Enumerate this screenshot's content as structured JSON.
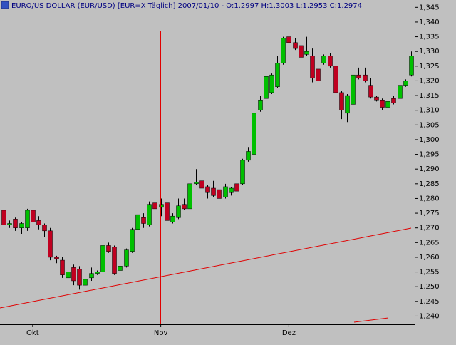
{
  "chart_data": {
    "type": "candlestick",
    "title": "EURO/US DOLLAR (EUR/USD) [EUR=X  Täglich] 2007/01/10 - O:1.2997 H:1.3003 L:1.2953 C:1.2974",
    "categories": [
      null,
      null,
      null,
      null,
      null,
      "Okt",
      null,
      null,
      null,
      null,
      null,
      null,
      null,
      null,
      null,
      null,
      null,
      null,
      null,
      null,
      null,
      null,
      null,
      null,
      null,
      null,
      null,
      "Nov",
      null,
      null,
      null,
      null,
      null,
      null,
      null,
      null,
      null,
      null,
      null,
      null,
      null,
      null,
      null,
      null,
      null,
      null,
      null,
      null,
      null,
      "Dez",
      null,
      null,
      null,
      null,
      null,
      null,
      null,
      null,
      null,
      null,
      null,
      null,
      null,
      null,
      null,
      null,
      null,
      null,
      null,
      null,
      null
    ],
    "open": [
      1.276,
      1.271,
      1.273,
      1.27,
      1.27,
      1.276,
      1.2725,
      1.271,
      1.269,
      1.26,
      1.259,
      1.253,
      1.2565,
      1.256,
      1.2505,
      1.253,
      1.2545,
      1.255,
      1.264,
      1.2635,
      1.2555,
      1.257,
      1.262,
      1.2695,
      1.2735,
      1.271,
      1.2785,
      1.277,
      1.2785,
      1.272,
      1.2735,
      1.278,
      1.2765,
      1.285,
      1.286,
      1.284,
      1.2835,
      1.283,
      1.2805,
      1.282,
      1.285,
      1.285,
      1.293,
      1.295,
      1.31,
      1.314,
      1.316,
      1.318,
      1.326,
      1.335,
      1.333,
      1.332,
      1.329,
      1.3285,
      1.324,
      1.326,
      1.3285,
      1.325,
      1.316,
      1.309,
      1.312,
      1.322,
      1.322,
      1.3185,
      1.3145,
      1.3135,
      1.311,
      1.314,
      1.314,
      1.3185,
      1.322
    ],
    "high": [
      1.2765,
      1.2725,
      1.2735,
      1.272,
      1.2765,
      1.2775,
      1.274,
      1.2715,
      1.27,
      1.2605,
      1.26,
      1.256,
      1.2575,
      1.257,
      1.2545,
      1.2565,
      1.2555,
      1.2645,
      1.265,
      1.264,
      1.2575,
      1.263,
      1.27,
      1.2755,
      1.275,
      1.279,
      1.28,
      1.28,
      1.2795,
      1.275,
      1.28,
      1.28,
      1.2855,
      1.29,
      1.287,
      1.2845,
      1.286,
      1.2835,
      1.285,
      1.284,
      1.286,
      1.2935,
      1.2975,
      1.31,
      1.315,
      1.322,
      1.3225,
      1.3285,
      1.335,
      1.3355,
      1.3345,
      1.3325,
      1.335,
      1.331,
      1.3245,
      1.329,
      1.3295,
      1.3255,
      1.3165,
      1.3155,
      1.3225,
      1.3245,
      1.3245,
      1.321,
      1.315,
      1.314,
      1.3135,
      1.315,
      1.3205,
      1.3205,
      1.33
    ],
    "low": [
      1.27,
      1.27,
      1.269,
      1.268,
      1.269,
      1.2705,
      1.2695,
      1.267,
      1.259,
      1.258,
      1.253,
      1.252,
      1.2505,
      1.249,
      1.2495,
      1.252,
      1.254,
      1.254,
      1.2615,
      1.254,
      1.255,
      1.2565,
      1.2615,
      1.269,
      1.27,
      1.2705,
      1.276,
      1.274,
      1.267,
      1.2715,
      1.273,
      1.276,
      1.276,
      1.2845,
      1.281,
      1.28,
      1.2805,
      1.279,
      1.28,
      1.281,
      1.282,
      1.2845,
      1.2925,
      1.2945,
      1.3095,
      1.3135,
      1.3155,
      1.3175,
      1.3255,
      1.3325,
      1.3305,
      1.326,
      1.3285,
      1.3195,
      1.318,
      1.3255,
      1.3245,
      1.3155,
      1.307,
      1.306,
      1.3115,
      1.3205,
      1.3195,
      1.314,
      1.313,
      1.31,
      1.3105,
      1.312,
      1.3135,
      1.318,
      1.3215
    ],
    "close": [
      1.271,
      1.2715,
      1.27,
      1.2715,
      1.276,
      1.272,
      1.271,
      1.269,
      1.26,
      1.2595,
      1.254,
      1.255,
      1.252,
      1.2505,
      1.2525,
      1.2545,
      1.255,
      1.264,
      1.262,
      1.2545,
      1.257,
      1.2625,
      1.2695,
      1.2745,
      1.2715,
      1.278,
      1.2765,
      1.278,
      1.2725,
      1.274,
      1.2775,
      1.2765,
      1.285,
      1.2855,
      1.2835,
      1.282,
      1.281,
      1.28,
      1.284,
      1.2835,
      1.2825,
      1.293,
      1.296,
      1.309,
      1.3135,
      1.3215,
      1.322,
      1.326,
      1.3345,
      1.333,
      1.331,
      1.328,
      1.33,
      1.321,
      1.32,
      1.3285,
      1.325,
      1.316,
      1.31,
      1.315,
      1.322,
      1.321,
      1.32,
      1.3145,
      1.3135,
      1.311,
      1.313,
      1.3125,
      1.3185,
      1.32,
      1.3285
    ],
    "up_color": "#00c000",
    "down_color": "#c00020",
    "ylim": [
      1.2372,
      1.3475
    ],
    "yticks": [
      {
        "value": 1.24,
        "label": "1,240"
      },
      {
        "value": 1.245,
        "label": "1,245"
      },
      {
        "value": 1.25,
        "label": "1,250"
      },
      {
        "value": 1.255,
        "label": "1,255"
      },
      {
        "value": 1.26,
        "label": "1,260"
      },
      {
        "value": 1.265,
        "label": "1,265"
      },
      {
        "value": 1.27,
        "label": "1,270"
      },
      {
        "value": 1.275,
        "label": "1,275"
      },
      {
        "value": 1.28,
        "label": "1,280"
      },
      {
        "value": 1.285,
        "label": "1,285"
      },
      {
        "value": 1.29,
        "label": "1,290"
      },
      {
        "value": 1.295,
        "label": "1,295"
      },
      {
        "value": 1.3,
        "label": "1,300"
      },
      {
        "value": 1.305,
        "label": "1,305"
      },
      {
        "value": 1.31,
        "label": "1,310"
      },
      {
        "value": 1.315,
        "label": "1,315"
      },
      {
        "value": 1.32,
        "label": "1,320"
      },
      {
        "value": 1.325,
        "label": "1,325"
      },
      {
        "value": 1.33,
        "label": "1,330"
      },
      {
        "value": 1.335,
        "label": "1,335"
      },
      {
        "value": 1.34,
        "label": "1,340"
      },
      {
        "value": 1.345,
        "label": "1,345"
      }
    ]
  }
}
